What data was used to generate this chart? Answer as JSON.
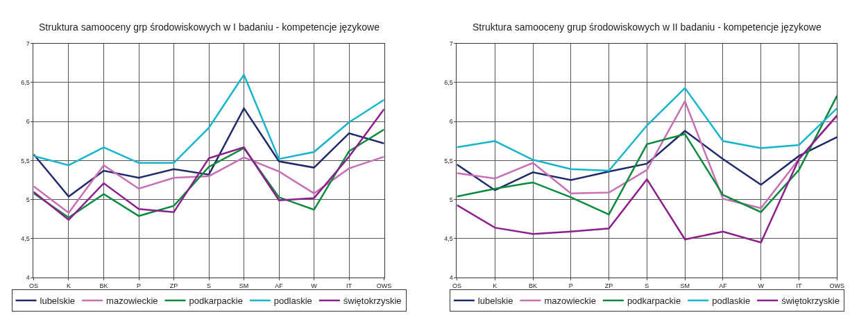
{
  "chart_data": [
    {
      "type": "line",
      "title": "Struktura samooceny grp środowiskowych w I badaniu - kompetencje językowe",
      "categories": [
        "OS",
        "K",
        "BK",
        "P",
        "ZP",
        "S",
        "SM",
        "AF",
        "W",
        "IT",
        "OWS"
      ],
      "series": [
        {
          "name": "lubelskie",
          "color": "#1f2a6b",
          "values": [
            5.58,
            5.04,
            5.37,
            5.28,
            5.39,
            5.32,
            6.17,
            5.49,
            5.41,
            5.85,
            5.72
          ]
        },
        {
          "name": "mazowieckie",
          "color": "#c86eb4",
          "values": [
            5.17,
            4.83,
            5.44,
            5.14,
            5.28,
            5.3,
            5.54,
            5.36,
            5.08,
            5.4,
            5.55
          ]
        },
        {
          "name": "podkarpackie",
          "color": "#0a8a3c",
          "values": [
            5.08,
            4.77,
            5.07,
            4.79,
            4.92,
            5.42,
            5.66,
            5.03,
            4.87,
            5.62,
            5.9
          ]
        },
        {
          "name": "podlaskie",
          "color": "#14b4cc",
          "values": [
            5.56,
            5.44,
            5.67,
            5.47,
            5.47,
            5.92,
            6.6,
            5.52,
            5.61,
            5.99,
            6.28
          ]
        },
        {
          "name": "świętokrzyskie",
          "color": "#8c1f8c",
          "values": [
            5.1,
            4.74,
            5.21,
            4.88,
            4.84,
            5.53,
            5.67,
            4.99,
            5.02,
            5.55,
            6.16
          ]
        }
      ],
      "ylim": [
        4,
        7
      ],
      "yticks": [
        4,
        {
          "value": 4.5,
          "label": "4,5"
        },
        5,
        {
          "value": 5.5,
          "label": "5,5"
        },
        6,
        {
          "value": 6.5,
          "label": "6,5"
        },
        7
      ],
      "grid": true,
      "legend": "bottom",
      "marker": "none",
      "line_style": "solid"
    },
    {
      "type": "line",
      "title": "Struktura samooceny grup środowiskowych w II badaniu - kompetencje językowe",
      "categories": [
        "OS",
        "K",
        "BK",
        "P",
        "ZP",
        "S",
        "SM",
        "AF",
        "W",
        "IT",
        "OWS"
      ],
      "series": [
        {
          "name": "lubelskie",
          "color": "#1f2a6b",
          "values": [
            5.45,
            5.12,
            5.35,
            5.25,
            5.36,
            5.46,
            5.88,
            5.52,
            5.19,
            5.56,
            5.8
          ]
        },
        {
          "name": "mazowieckie",
          "color": "#c86eb4",
          "values": [
            5.34,
            5.27,
            5.47,
            5.08,
            5.09,
            5.38,
            6.26,
            5.01,
            4.89,
            5.52,
            6.07
          ]
        },
        {
          "name": "podkarpackie",
          "color": "#0a8a3c",
          "values": [
            5.04,
            5.14,
            5.22,
            5.03,
            4.81,
            5.71,
            5.84,
            5.06,
            4.84,
            5.38,
            6.33
          ]
        },
        {
          "name": "podlaskie",
          "color": "#14b4cc",
          "values": [
            5.67,
            5.75,
            5.51,
            5.39,
            5.37,
            5.95,
            6.43,
            5.75,
            5.66,
            5.7,
            6.17
          ]
        },
        {
          "name": "świętokrzyskie",
          "color": "#8c1f8c",
          "values": [
            4.93,
            4.64,
            4.56,
            4.59,
            4.63,
            5.26,
            4.49,
            4.59,
            4.45,
            5.52,
            6.08
          ]
        }
      ],
      "ylim": [
        4,
        7
      ],
      "yticks": [
        4,
        {
          "value": 4.5,
          "label": "4,5"
        },
        5,
        {
          "value": 5.5,
          "label": "5,5"
        },
        6,
        {
          "value": 6.5,
          "label": "6,5"
        },
        7
      ],
      "grid": true,
      "legend": "bottom",
      "marker": "none",
      "line_style": "solid"
    }
  ]
}
